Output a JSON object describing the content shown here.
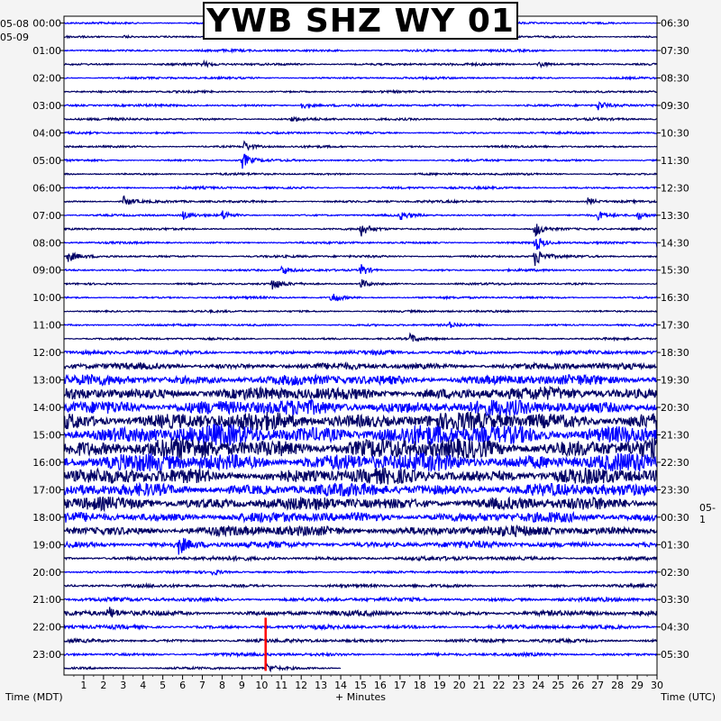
{
  "title": "YWB SHZ WY 01",
  "date_labels": {
    "start_top": "05-08",
    "start_row": "05-09",
    "next_day_right": "05-1"
  },
  "chart_data": {
    "type": "seismogram",
    "station": "YWB",
    "channel": "SHZ",
    "network": "WY",
    "location": "01",
    "xlabel": "+ Minutes",
    "left_axis_label": "Time (MDT)",
    "right_axis_label": "Time (UTC)",
    "xlim": [
      0,
      30
    ],
    "x_ticks": [
      1,
      2,
      3,
      4,
      5,
      6,
      7,
      8,
      9,
      10,
      11,
      12,
      13,
      14,
      15,
      16,
      17,
      18,
      19,
      20,
      21,
      22,
      23,
      24,
      25,
      26,
      27,
      28,
      29,
      30
    ],
    "rows_per_hour": 2,
    "row_count": 48,
    "last_row_fill_minutes": 14,
    "left_labels": [
      "00:00",
      "01:00",
      "02:00",
      "03:00",
      "04:00",
      "05:00",
      "06:00",
      "07:00",
      "08:00",
      "09:00",
      "10:00",
      "11:00",
      "12:00",
      "13:00",
      "14:00",
      "15:00",
      "16:00",
      "17:00",
      "18:00",
      "19:00",
      "20:00",
      "21:00",
      "22:00",
      "23:00"
    ],
    "right_labels": [
      "06:30",
      "07:30",
      "08:30",
      "09:30",
      "10:30",
      "11:30",
      "12:30",
      "13:30",
      "14:30",
      "15:30",
      "16:30",
      "17:30",
      "18:30",
      "19:30",
      "20:30",
      "21:30",
      "22:30",
      "23:30",
      "00:30",
      "01:30",
      "02:30",
      "03:30",
      "04:30",
      "05:30"
    ],
    "trace_colors": [
      "#0000ff",
      "#000066"
    ],
    "marker": {
      "row": 47,
      "minute": 10.2,
      "color": "#ff0000"
    },
    "row_noise": [
      0.8,
      0.8,
      0.9,
      0.9,
      0.8,
      0.8,
      0.9,
      0.9,
      0.8,
      0.8,
      0.8,
      0.8,
      0.9,
      0.9,
      0.8,
      0.8,
      0.8,
      0.9,
      0.8,
      0.8,
      0.8,
      0.8,
      0.8,
      0.8,
      1.5,
      2.5,
      4,
      5,
      6,
      7,
      8,
      8,
      7,
      6,
      5,
      5,
      4,
      4,
      2.5,
      1.5,
      0.9,
      1.2,
      1.5,
      2,
      1.5,
      1.3,
      1.2,
      1.0
    ],
    "events": [
      {
        "row": 1,
        "minute": 3,
        "amp": 2
      },
      {
        "row": 3,
        "minute": 7,
        "amp": 3
      },
      {
        "row": 3,
        "minute": 24,
        "amp": 4
      },
      {
        "row": 6,
        "minute": 12,
        "amp": 4
      },
      {
        "row": 6,
        "minute": 27,
        "amp": 6
      },
      {
        "row": 7,
        "minute": 11.5,
        "amp": 3
      },
      {
        "row": 9,
        "minute": 9.1,
        "amp": 6
      },
      {
        "row": 10,
        "minute": 9,
        "amp": 10
      },
      {
        "row": 13,
        "minute": 3,
        "amp": 6
      },
      {
        "row": 13,
        "minute": 26.5,
        "amp": 5
      },
      {
        "row": 14,
        "minute": 6,
        "amp": 5
      },
      {
        "row": 14,
        "minute": 8,
        "amp": 6
      },
      {
        "row": 14,
        "minute": 17,
        "amp": 5
      },
      {
        "row": 14,
        "minute": 27,
        "amp": 5
      },
      {
        "row": 14,
        "minute": 29,
        "amp": 5
      },
      {
        "row": 15,
        "minute": 15,
        "amp": 8
      },
      {
        "row": 15,
        "minute": 23.8,
        "amp": 10
      },
      {
        "row": 16,
        "minute": 23.8,
        "amp": 10
      },
      {
        "row": 16,
        "minute": 30,
        "amp": 5
      },
      {
        "row": 17,
        "minute": 0.2,
        "amp": 6
      },
      {
        "row": 17,
        "minute": 23.8,
        "amp": 12
      },
      {
        "row": 18,
        "minute": 11,
        "amp": 6
      },
      {
        "row": 18,
        "minute": 15,
        "amp": 8
      },
      {
        "row": 19,
        "minute": 10.5,
        "amp": 8
      },
      {
        "row": 19,
        "minute": 15,
        "amp": 6
      },
      {
        "row": 20,
        "minute": 13.5,
        "amp": 8
      },
      {
        "row": 22,
        "minute": 19.5,
        "amp": 3
      },
      {
        "row": 23,
        "minute": 17.5,
        "amp": 5
      },
      {
        "row": 38,
        "minute": 5.8,
        "amp": 10
      },
      {
        "row": 40,
        "minute": 7.5,
        "amp": 3
      },
      {
        "row": 43,
        "minute": 2.2,
        "amp": 8
      },
      {
        "row": 47,
        "minute": 10.2,
        "amp": 5
      }
    ]
  }
}
